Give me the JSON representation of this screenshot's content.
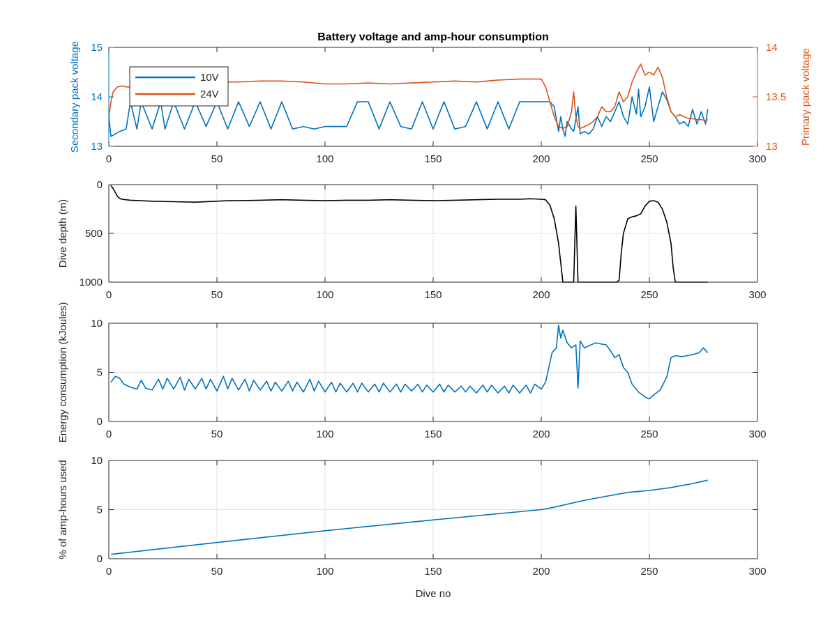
{
  "figure": {
    "title": "Battery voltage and amp-hour consumption",
    "background": "#ffffff"
  },
  "colors": {
    "blue": "#0072BD",
    "orange": "#D95319",
    "black": "#000000",
    "grid": "#e3e3e3",
    "axis": "#262626"
  },
  "chart_data": [
    {
      "type": "line",
      "title": "Battery voltage and amp-hour consumption",
      "xlim": [
        0,
        300
      ],
      "xticks": [
        "0",
        "50",
        "100",
        "150",
        "200",
        "250",
        "300"
      ],
      "ylabel": "Secondary pack voltage",
      "ylim": [
        13,
        15
      ],
      "yticks": [
        "13",
        "14",
        "15"
      ],
      "ylabel_right": "Primary pack voltage",
      "ylim_right": [
        13,
        14
      ],
      "yticks_right": [
        "13",
        "13.5",
        "14"
      ],
      "grid": false,
      "legend": {
        "placement": "top-left",
        "entries": [
          "10V",
          "24V"
        ]
      },
      "series": [
        {
          "name": "10V",
          "axis": "left",
          "color": "#0072BD",
          "x": [
            0,
            1,
            3,
            5,
            8,
            10,
            13,
            15,
            20,
            24,
            26,
            30,
            35,
            40,
            45,
            50,
            55,
            60,
            65,
            70,
            75,
            80,
            85,
            90,
            95,
            100,
            105,
            110,
            115,
            120,
            125,
            130,
            135,
            140,
            145,
            150,
            155,
            160,
            165,
            170,
            175,
            180,
            185,
            190,
            195,
            200,
            202,
            204,
            206,
            208,
            209,
            210,
            211,
            212,
            214,
            215,
            217,
            218,
            220,
            222,
            224,
            226,
            228,
            230,
            232,
            234,
            236,
            238,
            240,
            242,
            244,
            245,
            246,
            248,
            250,
            252,
            254,
            256,
            258,
            260,
            262,
            264,
            266,
            268,
            270,
            272,
            274,
            276,
            277
          ],
          "y": [
            13.6,
            13.2,
            13.25,
            13.3,
            13.35,
            13.9,
            13.35,
            13.9,
            13.35,
            13.9,
            13.35,
            13.9,
            13.35,
            13.9,
            13.4,
            13.9,
            13.35,
            13.9,
            13.4,
            13.9,
            13.35,
            13.9,
            13.35,
            13.4,
            13.35,
            13.4,
            13.4,
            13.4,
            13.9,
            13.9,
            13.35,
            13.9,
            13.4,
            13.35,
            13.9,
            13.35,
            13.9,
            13.35,
            13.4,
            13.9,
            13.35,
            13.9,
            13.35,
            13.9,
            13.9,
            13.9,
            13.9,
            13.9,
            13.8,
            13.3,
            13.6,
            13.35,
            13.2,
            13.5,
            13.35,
            13.3,
            13.8,
            13.25,
            13.3,
            13.25,
            13.35,
            13.6,
            13.4,
            13.6,
            13.5,
            13.7,
            13.9,
            13.6,
            13.45,
            14.0,
            13.65,
            14.15,
            13.6,
            13.8,
            14.2,
            13.5,
            13.8,
            14.1,
            13.95,
            13.7,
            13.6,
            13.45,
            13.5,
            13.4,
            13.75,
            13.45,
            13.7,
            13.45,
            13.75
          ]
        },
        {
          "name": "24V",
          "axis": "right",
          "color": "#D95319",
          "x": [
            0,
            1,
            2,
            4,
            6,
            8,
            10,
            12,
            30,
            40,
            50,
            60,
            70,
            80,
            90,
            100,
            110,
            120,
            130,
            140,
            150,
            160,
            170,
            180,
            190,
            195,
            200,
            202,
            204,
            206,
            208,
            210,
            212,
            214,
            215,
            216,
            217,
            218,
            220,
            222,
            224,
            226,
            228,
            230,
            232,
            234,
            236,
            238,
            240,
            242,
            244,
            246,
            248,
            250,
            252,
            254,
            256,
            258,
            260,
            262,
            264,
            266,
            268,
            270,
            272,
            274,
            276,
            277
          ],
          "y": [
            13.3,
            13.45,
            13.55,
            13.6,
            13.61,
            13.6,
            13.6,
            13.6,
            13.6,
            13.62,
            13.65,
            13.65,
            13.66,
            13.66,
            13.65,
            13.63,
            13.63,
            13.64,
            13.63,
            13.64,
            13.65,
            13.66,
            13.65,
            13.67,
            13.68,
            13.68,
            13.68,
            13.6,
            13.45,
            13.3,
            13.2,
            13.18,
            13.2,
            13.35,
            13.55,
            13.3,
            13.2,
            13.18,
            13.2,
            13.22,
            13.25,
            13.3,
            13.4,
            13.35,
            13.35,
            13.4,
            13.55,
            13.45,
            13.5,
            13.65,
            13.75,
            13.83,
            13.72,
            13.75,
            13.72,
            13.8,
            13.7,
            13.5,
            13.35,
            13.3,
            13.32,
            13.3,
            13.28,
            13.28,
            13.27,
            13.27,
            13.26,
            13.27
          ]
        }
      ]
    },
    {
      "type": "line",
      "xlim": [
        0,
        300
      ],
      "xticks": [
        "0",
        "50",
        "100",
        "150",
        "200",
        "250",
        "300"
      ],
      "ylabel": "Dive depth (m)",
      "ylim": [
        0,
        1000
      ],
      "y_reversed": true,
      "yticks": [
        "0",
        "500",
        "1000"
      ],
      "grid": true,
      "series": [
        {
          "color": "#000000",
          "x": [
            1,
            2,
            3,
            4,
            5,
            6,
            10,
            20,
            30,
            40,
            50,
            55,
            60,
            70,
            80,
            90,
            100,
            110,
            120,
            130,
            140,
            150,
            160,
            170,
            180,
            190,
            195,
            200,
            202,
            204,
            206,
            208,
            209,
            210,
            212,
            214,
            215,
            216,
            217,
            218,
            219,
            220,
            225,
            230,
            235,
            236,
            237,
            238,
            240,
            242,
            244,
            246,
            248,
            250,
            252,
            254,
            256,
            258,
            260,
            261,
            262,
            265,
            270,
            277
          ],
          "y": [
            10,
            40,
            80,
            120,
            140,
            150,
            160,
            170,
            175,
            180,
            170,
            165,
            165,
            160,
            155,
            160,
            165,
            160,
            160,
            155,
            160,
            165,
            160,
            155,
            150,
            150,
            145,
            150,
            155,
            210,
            350,
            600,
            800,
            1000,
            1000,
            1000,
            1000,
            220,
            1000,
            1000,
            1000,
            1000,
            1000,
            1000,
            1000,
            980,
            700,
            500,
            350,
            330,
            320,
            300,
            220,
            170,
            165,
            180,
            250,
            380,
            600,
            850,
            1000,
            1000,
            1000,
            1000
          ]
        }
      ]
    },
    {
      "type": "line",
      "xlim": [
        0,
        300
      ],
      "xticks": [
        "0",
        "50",
        "100",
        "150",
        "200",
        "250",
        "300"
      ],
      "ylabel": "Energy consumption (kJoules)",
      "ylim": [
        0,
        10
      ],
      "yticks": [
        "0",
        "5",
        "10"
      ],
      "grid": true,
      "series": [
        {
          "color": "#0072BD",
          "x": [
            1,
            3,
            5,
            7,
            10,
            13,
            15,
            17,
            20,
            23,
            25,
            27,
            30,
            33,
            35,
            37,
            40,
            43,
            45,
            47,
            50,
            53,
            55,
            57,
            60,
            63,
            65,
            67,
            70,
            73,
            75,
            77,
            80,
            83,
            85,
            87,
            90,
            93,
            95,
            97,
            100,
            103,
            105,
            107,
            110,
            113,
            115,
            117,
            120,
            123,
            125,
            127,
            130,
            133,
            135,
            137,
            140,
            143,
            145,
            147,
            150,
            153,
            155,
            157,
            160,
            163,
            165,
            167,
            170,
            173,
            175,
            177,
            180,
            183,
            185,
            187,
            190,
            193,
            195,
            197,
            200,
            202,
            203,
            205,
            207,
            208,
            209,
            210,
            212,
            214,
            216,
            217,
            218,
            220,
            225,
            230,
            232,
            234,
            236,
            238,
            240,
            242,
            245,
            248,
            250,
            252,
            255,
            258,
            260,
            262,
            265,
            270,
            273,
            275,
            277
          ],
          "y": [
            4,
            4.6,
            4.4,
            3.8,
            3.5,
            3.3,
            4.2,
            3.4,
            3.2,
            4.3,
            3.3,
            4.4,
            3.3,
            4.5,
            3.2,
            4.3,
            3.3,
            4.4,
            3.3,
            4.3,
            3.1,
            4.6,
            3.3,
            4.4,
            3.2,
            4.3,
            3.1,
            4.2,
            3.2,
            4.1,
            3.1,
            4.0,
            3.1,
            4.1,
            3.1,
            4.0,
            3.0,
            4.3,
            3.1,
            4.1,
            3.0,
            4.0,
            3.0,
            3.9,
            3.0,
            3.9,
            3.0,
            3.9,
            3.0,
            3.8,
            3.0,
            3.9,
            3.0,
            3.8,
            3.0,
            3.8,
            3.1,
            3.8,
            3.0,
            3.7,
            3.0,
            3.8,
            3.0,
            3.7,
            3.0,
            3.6,
            3.0,
            3.6,
            2.9,
            3.7,
            3.0,
            3.7,
            2.9,
            3.6,
            2.9,
            3.7,
            2.9,
            3.7,
            2.9,
            3.8,
            3.3,
            4.0,
            5.0,
            7.0,
            7.5,
            9.8,
            8.5,
            9.3,
            8.0,
            7.5,
            7.8,
            3.4,
            8.2,
            7.5,
            8.0,
            7.8,
            7.2,
            6.5,
            6.8,
            5.5,
            5.0,
            3.8,
            3.0,
            2.5,
            2.3,
            2.7,
            3.2,
            4.5,
            6.5,
            6.7,
            6.6,
            6.8,
            7.0,
            7.5,
            7.0
          ]
        }
      ]
    },
    {
      "type": "line",
      "xlabel": "Dive no",
      "xlim": [
        0,
        300
      ],
      "xticks": [
        "0",
        "50",
        "100",
        "150",
        "200",
        "250",
        "300"
      ],
      "ylabel": "% of amp-hours used",
      "ylim": [
        0,
        10
      ],
      "yticks": [
        "0",
        "5",
        "10"
      ],
      "grid": true,
      "series": [
        {
          "color": "#0072BD",
          "x": [
            1,
            50,
            100,
            150,
            200,
            205,
            220,
            240,
            250,
            260,
            270,
            277
          ],
          "y": [
            0.45,
            1.65,
            2.85,
            3.95,
            5.0,
            5.2,
            5.95,
            6.75,
            6.95,
            7.25,
            7.65,
            8.0
          ]
        }
      ]
    }
  ]
}
